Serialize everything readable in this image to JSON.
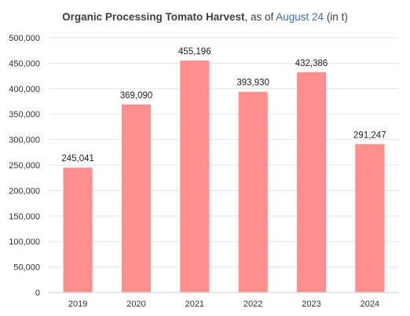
{
  "chart_data": {
    "type": "bar",
    "title_parts": [
      {
        "text": "Organic Processing Tomato Harvest",
        "style": "bold"
      },
      {
        "text": ", as of ",
        "style": "normal"
      },
      {
        "text": "August 24",
        "style": "accent"
      },
      {
        "text": " (in t)",
        "style": "normal"
      }
    ],
    "categories": [
      "2019",
      "2020",
      "2021",
      "2022",
      "2023",
      "2024"
    ],
    "values": [
      245041,
      369090,
      455196,
      393930,
      432386,
      291247
    ],
    "value_labels": [
      "245,041",
      "369,090",
      "455,196",
      "393,930",
      "432,386",
      "291,247"
    ],
    "ylim": [
      0,
      500000
    ],
    "y_ticks": [
      0,
      50000,
      100000,
      150000,
      200000,
      250000,
      300000,
      350000,
      400000,
      450000,
      500000
    ],
    "y_tick_labels": [
      "0",
      "50,000",
      "100,000",
      "150,000",
      "200,000",
      "250,000",
      "300,000",
      "350,000",
      "400,000",
      "450,000",
      "500,000"
    ],
    "xlabel": "",
    "ylabel": "",
    "grid": true,
    "legend": "none",
    "colors": {
      "bar": "#ff8f8c",
      "title_accent": "#3b6fb6"
    }
  }
}
